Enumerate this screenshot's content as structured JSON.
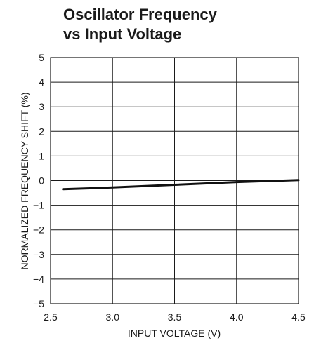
{
  "chart_data": {
    "type": "line",
    "title": [
      "Oscillator Frequency",
      "vs Input Voltage"
    ],
    "xlabel": "INPUT VOLTAGE (V)",
    "ylabel": "NORMALIZED FREQUENCY SHIFT (%)",
    "xlim": [
      2.5,
      4.5
    ],
    "ylim": [
      -5,
      5
    ],
    "xticks": [
      2.5,
      3.0,
      3.5,
      4.0,
      4.5
    ],
    "xtick_labels": [
      "2.5",
      "3.0",
      "3.5",
      "4.0",
      "4.5"
    ],
    "yticks": [
      5,
      4,
      3,
      2,
      1,
      0,
      -1,
      -2,
      -3,
      -4,
      -5
    ],
    "ytick_labels": [
      "5",
      "4",
      "3",
      "2",
      "1",
      "0",
      "−1",
      "−2",
      "−3",
      "−4",
      "−5"
    ],
    "grid": true,
    "line_color": "#111111",
    "series": [
      {
        "x": [
          2.6,
          3.0,
          3.5,
          4.0,
          4.5
        ],
        "y": [
          -0.35,
          -0.28,
          -0.17,
          -0.06,
          0.02
        ]
      }
    ]
  }
}
